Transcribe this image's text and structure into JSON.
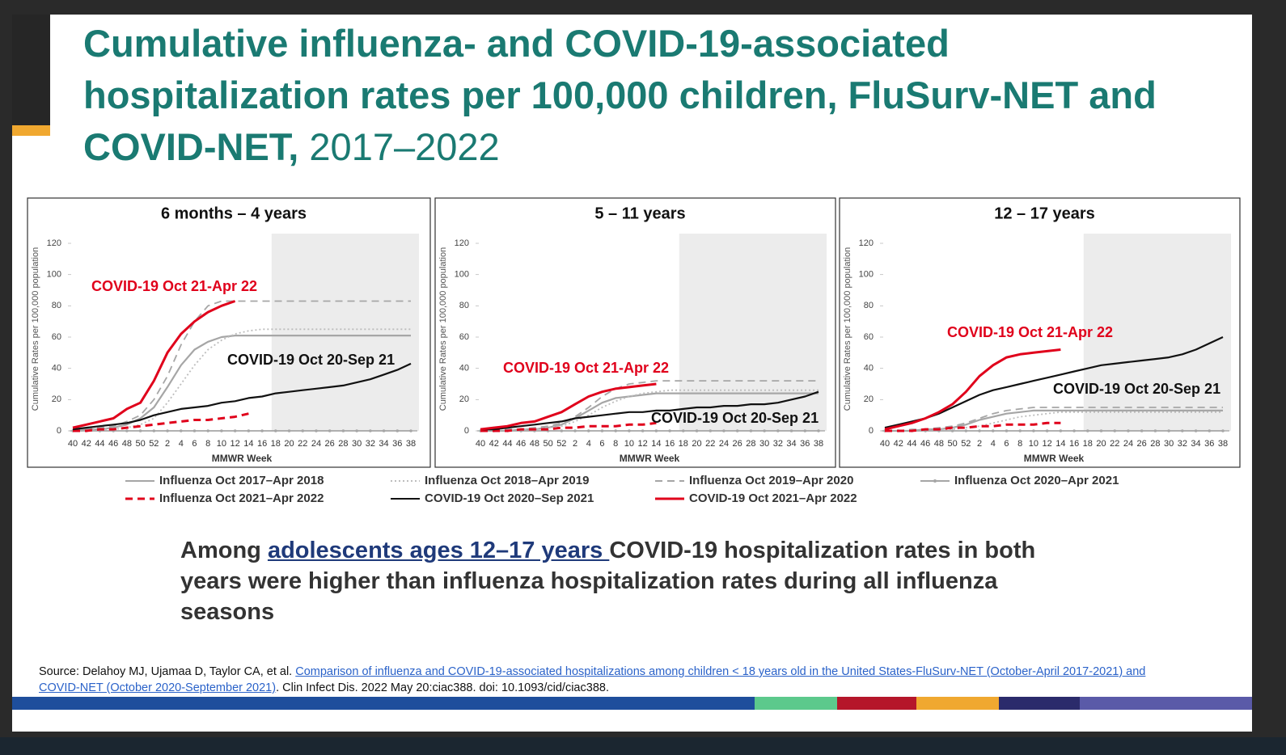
{
  "title": "Cumulative influenza- and COVID-19-associated hospitalization rates per 100,000 children, FluSurv-NET and COVID-NET,",
  "title_years": "2017–2022",
  "chart_data": [
    {
      "type": "line",
      "title": "6 months – 4 years",
      "x_label": "MMWR Week",
      "y_label": "Cumulative Rates per 100,000 population",
      "categories": [
        "40",
        "42",
        "44",
        "46",
        "48",
        "50",
        "52",
        "2",
        "4",
        "6",
        "8",
        "10",
        "12",
        "14",
        "16",
        "18",
        "20",
        "22",
        "24",
        "26",
        "28",
        "30",
        "32",
        "34",
        "36",
        "38"
      ],
      "ylim": [
        0,
        120
      ],
      "yticks": [
        0,
        20,
        40,
        60,
        80,
        100,
        120
      ],
      "shaded_range": [
        "18",
        "38"
      ],
      "annotations": [
        "COVID-19 Oct 21-Apr 22",
        "COVID-19 Oct 20-Sep 21"
      ],
      "series": [
        {
          "name": "Influenza Oct 2017–Apr 2018",
          "color": "#a6a6a6",
          "line_style": "solid",
          "values": [
            0,
            1,
            1,
            2,
            4,
            8,
            15,
            28,
            42,
            52,
            57,
            60,
            61,
            61,
            61,
            61,
            61,
            61,
            61,
            61,
            61,
            61,
            61,
            61,
            61,
            61
          ]
        },
        {
          "name": "Influenza Oct 2018–Apr 2019",
          "color": "#bdbdbd",
          "line_style": "dotted",
          "values": [
            0,
            0,
            1,
            1,
            2,
            4,
            8,
            18,
            30,
            42,
            52,
            58,
            62,
            64,
            65,
            65,
            65,
            65,
            65,
            65,
            65,
            65,
            65,
            65,
            65,
            65
          ]
        },
        {
          "name": "Influenza Oct 2019–Apr 2020",
          "color": "#a6a6a6",
          "line_style": "dashed",
          "values": [
            1,
            1,
            2,
            3,
            6,
            10,
            20,
            35,
            55,
            70,
            80,
            83,
            83,
            83,
            83,
            83,
            83,
            83,
            83,
            83,
            83,
            83,
            83,
            83,
            83,
            83
          ]
        },
        {
          "name": "Influenza Oct 2020–Apr 2021",
          "color": "#a6a6a6",
          "line_style": "marker",
          "values": [
            0,
            0,
            0,
            0,
            0,
            0,
            0,
            0,
            0,
            0,
            0,
            0,
            0,
            0,
            0,
            0,
            0,
            0,
            0,
            0,
            0,
            0,
            0,
            0,
            0,
            0
          ]
        },
        {
          "name": "Influenza Oct 2021–Apr 2022",
          "color": "#e0001b",
          "line_style": "dashed",
          "values": [
            0,
            0,
            1,
            1,
            2,
            3,
            4,
            5,
            6,
            7,
            7,
            8,
            9,
            11,
            null,
            null,
            null,
            null,
            null,
            null,
            null,
            null,
            null,
            null,
            null,
            null
          ]
        },
        {
          "name": "COVID-19 Oct 2020–Sep 2021",
          "color": "#111111",
          "line_style": "solid",
          "values": [
            1,
            2,
            3,
            4,
            5,
            7,
            10,
            12,
            14,
            15,
            16,
            18,
            19,
            21,
            22,
            24,
            25,
            26,
            27,
            28,
            29,
            31,
            33,
            36,
            39,
            43
          ]
        },
        {
          "name": "COVID-19 Oct 2021–Apr 2022",
          "color": "#e0001b",
          "line_style": "solid",
          "values": [
            2,
            4,
            6,
            8,
            14,
            18,
            32,
            50,
            62,
            70,
            76,
            80,
            83,
            null,
            null,
            null,
            null,
            null,
            null,
            null,
            null,
            null,
            null,
            null,
            null,
            null
          ]
        }
      ]
    },
    {
      "type": "line",
      "title": "5 – 11 years",
      "x_label": "MMWR Week",
      "y_label": "Cumulative Rates per 100,000 population",
      "categories": [
        "40",
        "42",
        "44",
        "46",
        "48",
        "50",
        "52",
        "2",
        "4",
        "6",
        "8",
        "10",
        "12",
        "14",
        "16",
        "18",
        "20",
        "22",
        "24",
        "26",
        "28",
        "30",
        "32",
        "34",
        "36",
        "38"
      ],
      "ylim": [
        0,
        120
      ],
      "yticks": [
        0,
        20,
        40,
        60,
        80,
        100,
        120
      ],
      "shaded_range": [
        "18",
        "38"
      ],
      "annotations": [
        "COVID-19 Oct 21-Apr 22",
        "COVID-19 Oct 20-Sep 21"
      ],
      "series": [
        {
          "name": "Influenza Oct 2017–Apr 2018",
          "color": "#a6a6a6",
          "line_style": "solid",
          "values": [
            0,
            0,
            0,
            1,
            1,
            2,
            4,
            8,
            13,
            18,
            21,
            22,
            23,
            24,
            24,
            24,
            24,
            24,
            24,
            24,
            24,
            24,
            24,
            24,
            24,
            24
          ]
        },
        {
          "name": "Influenza Oct 2018–Apr 2019",
          "color": "#bdbdbd",
          "line_style": "dotted",
          "values": [
            0,
            0,
            0,
            1,
            1,
            2,
            3,
            6,
            10,
            15,
            19,
            22,
            24,
            25,
            26,
            26,
            26,
            26,
            26,
            26,
            26,
            26,
            26,
            26,
            26,
            26
          ]
        },
        {
          "name": "Influenza Oct 2019–Apr 2020",
          "color": "#a6a6a6",
          "line_style": "dashed",
          "values": [
            0,
            0,
            1,
            1,
            2,
            3,
            5,
            9,
            15,
            22,
            27,
            30,
            31,
            32,
            32,
            32,
            32,
            32,
            32,
            32,
            32,
            32,
            32,
            32,
            32,
            32
          ]
        },
        {
          "name": "Influenza Oct 2020–Apr 2021",
          "color": "#a6a6a6",
          "line_style": "marker",
          "values": [
            0,
            0,
            0,
            0,
            0,
            0,
            0,
            0,
            0,
            0,
            0,
            0,
            0,
            0,
            0,
            0,
            0,
            0,
            0,
            0,
            0,
            0,
            0,
            0,
            0,
            0
          ]
        },
        {
          "name": "Influenza Oct 2021–Apr 2022",
          "color": "#e0001b",
          "line_style": "dashed",
          "values": [
            0,
            0,
            0,
            1,
            1,
            1,
            2,
            2,
            3,
            3,
            3,
            4,
            4,
            5,
            null,
            null,
            null,
            null,
            null,
            null,
            null,
            null,
            null,
            null,
            null,
            null
          ]
        },
        {
          "name": "COVID-19 Oct 2020–Sep 2021",
          "color": "#111111",
          "line_style": "solid",
          "values": [
            1,
            1,
            2,
            3,
            4,
            5,
            6,
            8,
            9,
            10,
            11,
            12,
            12,
            13,
            13,
            14,
            15,
            15,
            16,
            16,
            17,
            17,
            18,
            20,
            22,
            25
          ]
        },
        {
          "name": "COVID-19 Oct 2021–Apr 2022",
          "color": "#e0001b",
          "line_style": "solid",
          "values": [
            1,
            2,
            3,
            5,
            6,
            9,
            12,
            17,
            22,
            25,
            27,
            28,
            29,
            30,
            null,
            null,
            null,
            null,
            null,
            null,
            null,
            null,
            null,
            null,
            null,
            null
          ]
        }
      ]
    },
    {
      "type": "line",
      "title": "12 – 17 years",
      "x_label": "MMWR Week",
      "y_label": "Cumulative Rates per 100,000 population",
      "categories": [
        "40",
        "42",
        "44",
        "46",
        "48",
        "50",
        "52",
        "2",
        "4",
        "6",
        "8",
        "10",
        "12",
        "14",
        "16",
        "18",
        "20",
        "22",
        "24",
        "26",
        "28",
        "30",
        "32",
        "34",
        "36",
        "38"
      ],
      "ylim": [
        0,
        120
      ],
      "yticks": [
        0,
        20,
        40,
        60,
        80,
        100,
        120
      ],
      "shaded_range": [
        "18",
        "38"
      ],
      "annotations": [
        "COVID-19 Oct 21-Apr 22",
        "COVID-19 Oct 20-Sep 21"
      ],
      "series": [
        {
          "name": "Influenza Oct 2017–Apr 2018",
          "color": "#a6a6a6",
          "line_style": "solid",
          "values": [
            0,
            0,
            0,
            1,
            1,
            2,
            4,
            7,
            9,
            11,
            12,
            13,
            13,
            13,
            13,
            13,
            13,
            13,
            13,
            13,
            13,
            13,
            13,
            13,
            13,
            13
          ]
        },
        {
          "name": "Influenza Oct 2018–Apr 2019",
          "color": "#bdbdbd",
          "line_style": "dotted",
          "values": [
            0,
            0,
            0,
            0,
            1,
            1,
            2,
            3,
            5,
            7,
            9,
            10,
            11,
            12,
            12,
            12,
            12,
            12,
            12,
            12,
            12,
            12,
            12,
            12,
            12,
            12
          ]
        },
        {
          "name": "Influenza Oct 2019–Apr 2020",
          "color": "#a6a6a6",
          "line_style": "dashed",
          "values": [
            0,
            0,
            1,
            1,
            2,
            3,
            5,
            8,
            11,
            13,
            14,
            15,
            15,
            15,
            15,
            15,
            15,
            15,
            15,
            15,
            15,
            15,
            15,
            15,
            15,
            15
          ]
        },
        {
          "name": "Influenza Oct 2020–Apr 2021",
          "color": "#a6a6a6",
          "line_style": "marker",
          "values": [
            0,
            0,
            0,
            0,
            0,
            0,
            0,
            0,
            0,
            0,
            0,
            0,
            0,
            0,
            0,
            0,
            0,
            0,
            0,
            0,
            0,
            0,
            0,
            0,
            0,
            0
          ]
        },
        {
          "name": "Influenza Oct 2021–Apr 2022",
          "color": "#e0001b",
          "line_style": "dashed",
          "values": [
            0,
            0,
            0,
            1,
            1,
            2,
            2,
            3,
            3,
            4,
            4,
            4,
            5,
            5,
            null,
            null,
            null,
            null,
            null,
            null,
            null,
            null,
            null,
            null,
            null,
            null
          ]
        },
        {
          "name": "COVID-19 Oct 2020–Sep 2021",
          "color": "#111111",
          "line_style": "solid",
          "values": [
            2,
            4,
            6,
            8,
            11,
            15,
            19,
            23,
            26,
            28,
            30,
            32,
            34,
            36,
            38,
            40,
            42,
            43,
            44,
            45,
            46,
            47,
            49,
            52,
            56,
            60
          ]
        },
        {
          "name": "COVID-19 Oct 2021–Apr 2022",
          "color": "#e0001b",
          "line_style": "solid",
          "values": [
            1,
            3,
            5,
            8,
            12,
            17,
            25,
            35,
            42,
            47,
            49,
            50,
            51,
            52,
            null,
            null,
            null,
            null,
            null,
            null,
            null,
            null,
            null,
            null,
            null,
            null
          ]
        }
      ]
    }
  ],
  "summary": {
    "before": "Among ",
    "link": "adolescents ages 12–17 years ",
    "after": "COVID-19 hospitalization rates in both years were higher than influenza hospitalization rates during all influenza seasons"
  },
  "source": {
    "before": "Source: Delahoy MJ, Ujamaa D, Taylor CA, et al. ",
    "link": "Comparison of influenza and COVID-19-associated hospitalizations among children < 18 years old in the United States-FluSurv-NET (October-April 2017-2021) and COVID-NET (October 2020-September 2021)",
    "after": ". Clin Infect Dis. 2022 May 20:ciac388. doi: 10.1093/cid/ciac388."
  }
}
